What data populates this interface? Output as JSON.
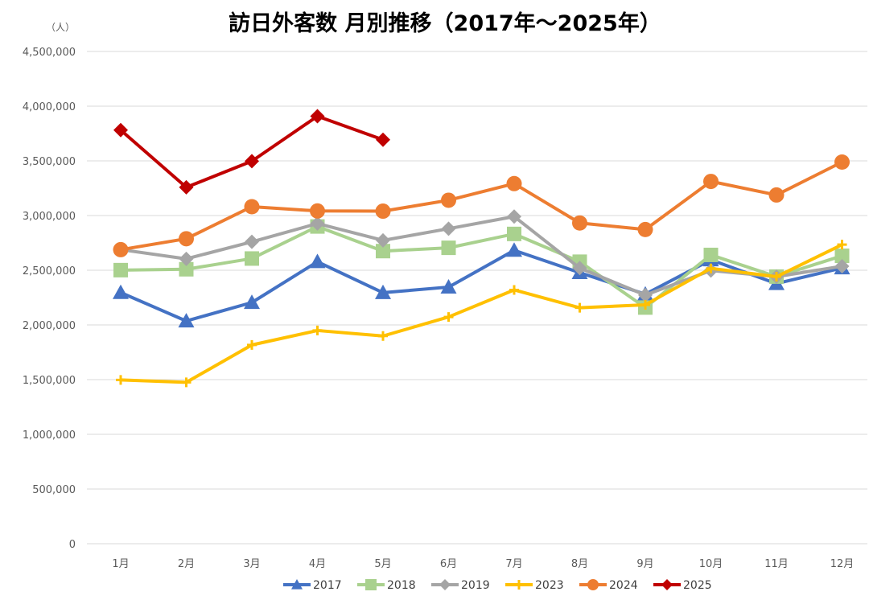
{
  "chart_data": {
    "type": "line",
    "title": "訪日外客数 月別推移（2017年～2025年）",
    "y_unit": "（人）",
    "categories": [
      "1月",
      "2月",
      "3月",
      "4月",
      "5月",
      "6月",
      "7月",
      "8月",
      "9月",
      "10月",
      "11月",
      "12月"
    ],
    "ylim": [
      0,
      4500000
    ],
    "y_ticks": [
      "0",
      "500,000",
      "1,000,000",
      "1,500,000",
      "2,000,000",
      "2,500,000",
      "3,000,000",
      "3,500,000",
      "4,000,000",
      "4,500,000"
    ],
    "y_tick_values": [
      0,
      500000,
      1000000,
      1500000,
      2000000,
      2500000,
      3000000,
      3500000,
      4000000,
      4500000
    ],
    "grid": true,
    "legend_position": "bottom",
    "series": [
      {
        "name": "2017",
        "color": "#4472C4",
        "marker": "triangle",
        "values": [
          2296000,
          2036000,
          2205000,
          2578000,
          2295000,
          2346000,
          2682000,
          2478000,
          2281000,
          2595000,
          2378000,
          2521000
        ]
      },
      {
        "name": "2018",
        "color": "#A9D18E",
        "marker": "square",
        "values": [
          2501000,
          2509000,
          2607000,
          2900000,
          2675000,
          2705000,
          2832000,
          2578000,
          2159000,
          2640000,
          2442000,
          2632000
        ]
      },
      {
        "name": "2019",
        "color": "#A5A5A5",
        "marker": "diamond",
        "values": [
          2689000,
          2604000,
          2760000,
          2927000,
          2773000,
          2880000,
          2991000,
          2520000,
          2273000,
          2497000,
          2441000,
          2537000
        ]
      },
      {
        "name": "2023",
        "color": "#FFC000",
        "marker": "plus",
        "values": [
          1497000,
          1475000,
          1817000,
          1949000,
          1899000,
          2073000,
          2320000,
          2157000,
          2184000,
          2517000,
          2441000,
          2734000
        ]
      },
      {
        "name": "2024",
        "color": "#ED7D31",
        "marker": "circle",
        "values": [
          2688000,
          2788000,
          3081000,
          3042000,
          3040000,
          3140000,
          3292000,
          2932000,
          2872000,
          3312000,
          3188000,
          3489000
        ]
      },
      {
        "name": "2025",
        "color": "#C00000",
        "marker": "diamond",
        "values": [
          3781000,
          3258000,
          3497000,
          3908000,
          3693000,
          null,
          null,
          null,
          null,
          null,
          null,
          null
        ]
      }
    ]
  }
}
